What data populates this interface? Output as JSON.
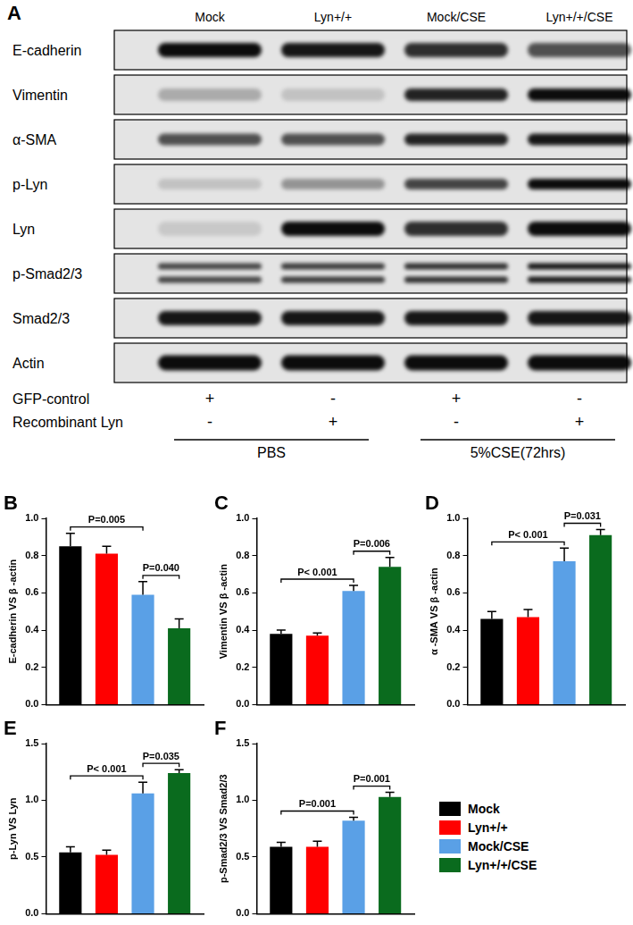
{
  "panel_a": {
    "label": "A",
    "columns": [
      "Mock",
      "Lyn+/+",
      "Mock/CSE",
      "Lyn+/+/CSE"
    ],
    "rows": [
      "E-cadherin",
      "Vimentin",
      "α-SMA",
      "p-Lyn",
      "Lyn",
      "p-Smad2/3",
      "Smad2/3",
      "Actin"
    ],
    "treatments": [
      {
        "name": "GFP-control",
        "marks": [
          "+",
          "-",
          "+",
          "-"
        ]
      },
      {
        "name": "Recombinant Lyn",
        "marks": [
          "-",
          "+",
          "-",
          "+"
        ]
      }
    ],
    "groups": [
      {
        "label": "PBS",
        "columns": [
          "Mock",
          "Lyn+/+"
        ]
      },
      {
        "label": "5%CSE(72hrs)",
        "columns": [
          "Mock/CSE",
          "Lyn+/+/CSE"
        ]
      }
    ]
  },
  "chart_data": [
    {
      "type": "bar",
      "title": "B",
      "y_label": "E-cadherin VS β -actin",
      "categories": [
        null
      ],
      "tick_labels": "y",
      "grid": false,
      "ylim": [
        0,
        1.0
      ],
      "yticks": [
        {
          "value": 0,
          "label": "0.0"
        },
        {
          "value": 0.2,
          "label": "0.2"
        },
        {
          "value": 0.4,
          "label": "0.4"
        },
        {
          "value": 0.6,
          "label": "0.6"
        },
        {
          "value": 0.8,
          "label": "0.8"
        },
        {
          "value": 1.0,
          "label": "1.0"
        }
      ],
      "series": [
        {
          "name": "Mock",
          "color": "#000000",
          "values": [
            0.85
          ],
          "errors": [
            0.07
          ]
        },
        {
          "name": "Lyn+/+",
          "color": "#ff0000",
          "values": [
            0.81
          ],
          "errors": [
            0.04
          ]
        },
        {
          "name": "Mock/CSE",
          "color": "#5aa0e6",
          "values": [
            0.59
          ],
          "errors": [
            0.07
          ]
        },
        {
          "name": "Lyn+/+/CSE",
          "color": "#0a6b1e",
          "values": [
            0.41
          ],
          "errors": [
            0.05
          ]
        }
      ],
      "annotations": [
        {
          "from": "Mock",
          "to": "Mock/CSE",
          "label": "P=0.005"
        },
        {
          "from": "Mock/CSE",
          "to": "Lyn+/+/CSE",
          "label": "P=0.040"
        }
      ]
    },
    {
      "type": "bar",
      "title": "C",
      "y_label": "Vimentin VS β -actin",
      "categories": [
        null
      ],
      "tick_labels": "y",
      "grid": false,
      "ylim": [
        0,
        1.0
      ],
      "yticks": [
        {
          "value": 0,
          "label": "0.0"
        },
        {
          "value": 0.2,
          "label": "0.2"
        },
        {
          "value": 0.4,
          "label": "0.4"
        },
        {
          "value": 0.6,
          "label": "0.6"
        },
        {
          "value": 0.8,
          "label": "0.8"
        },
        {
          "value": 1.0,
          "label": "1.0"
        }
      ],
      "series": [
        {
          "name": "Mock",
          "color": "#000000",
          "values": [
            0.38
          ],
          "errors": [
            0.02
          ]
        },
        {
          "name": "Lyn+/+",
          "color": "#ff0000",
          "values": [
            0.37
          ],
          "errors": [
            0.015
          ]
        },
        {
          "name": "Mock/CSE",
          "color": "#5aa0e6",
          "values": [
            0.61
          ],
          "errors": [
            0.03
          ]
        },
        {
          "name": "Lyn+/+/CSE",
          "color": "#0a6b1e",
          "values": [
            0.74
          ],
          "errors": [
            0.05
          ]
        }
      ],
      "annotations": [
        {
          "from": "Mock",
          "to": "Mock/CSE",
          "label": "P< 0.001"
        },
        {
          "from": "Mock/CSE",
          "to": "Lyn+/+/CSE",
          "label": "P=0.006"
        }
      ]
    },
    {
      "type": "bar",
      "title": "D",
      "y_label": "α -SMA VS β -actin",
      "categories": [
        null
      ],
      "tick_labels": "y",
      "grid": false,
      "ylim": [
        0,
        1.0
      ],
      "yticks": [
        {
          "value": 0,
          "label": "0.0"
        },
        {
          "value": 0.2,
          "label": "0.2"
        },
        {
          "value": 0.4,
          "label": "0.4"
        },
        {
          "value": 0.6,
          "label": "0.6"
        },
        {
          "value": 0.8,
          "label": "0.8"
        },
        {
          "value": 1.0,
          "label": "1.0"
        }
      ],
      "series": [
        {
          "name": "Mock",
          "color": "#000000",
          "values": [
            0.46
          ],
          "errors": [
            0.04
          ]
        },
        {
          "name": "Lyn+/+",
          "color": "#ff0000",
          "values": [
            0.47
          ],
          "errors": [
            0.04
          ]
        },
        {
          "name": "Mock/CSE",
          "color": "#5aa0e6",
          "values": [
            0.77
          ],
          "errors": [
            0.07
          ]
        },
        {
          "name": "Lyn+/+/CSE",
          "color": "#0a6b1e",
          "values": [
            0.91
          ],
          "errors": [
            0.03
          ]
        }
      ],
      "annotations": [
        {
          "from": "Mock",
          "to": "Mock/CSE",
          "label": "P< 0.001"
        },
        {
          "from": "Mock/CSE",
          "to": "Lyn+/+/CSE",
          "label": "P=0.031"
        }
      ]
    },
    {
      "type": "bar",
      "title": "E",
      "y_label": "p-Lyn VS Lyn",
      "categories": [
        null
      ],
      "tick_labels": "y",
      "grid": false,
      "ylim": [
        0,
        1.5
      ],
      "yticks": [
        {
          "value": 0,
          "label": "0.0"
        },
        {
          "value": 0.5,
          "label": "0.5"
        },
        {
          "value": 1.0,
          "label": "1.0"
        },
        {
          "value": 1.5,
          "label": "1.5"
        }
      ],
      "series": [
        {
          "name": "Mock",
          "color": "#000000",
          "values": [
            0.54
          ],
          "errors": [
            0.05
          ]
        },
        {
          "name": "Lyn+/+",
          "color": "#ff0000",
          "values": [
            0.52
          ],
          "errors": [
            0.04
          ]
        },
        {
          "name": "Mock/CSE",
          "color": "#5aa0e6",
          "values": [
            1.06
          ],
          "errors": [
            0.1
          ]
        },
        {
          "name": "Lyn+/+/CSE",
          "color": "#0a6b1e",
          "values": [
            1.24
          ],
          "errors": [
            0.03
          ]
        }
      ],
      "annotations": [
        {
          "from": "Mock",
          "to": "Mock/CSE",
          "label": "P< 0.001"
        },
        {
          "from": "Mock/CSE",
          "to": "Lyn+/+/CSE",
          "label": "P=0.035"
        }
      ]
    },
    {
      "type": "bar",
      "title": "F",
      "y_label": "p-Smad2/3 VS Smad2/3",
      "categories": [
        null
      ],
      "tick_labels": "y",
      "grid": false,
      "legend": "right",
      "ylim": [
        0,
        1.5
      ],
      "yticks": [
        {
          "value": 0,
          "label": "0.0"
        },
        {
          "value": 0.5,
          "label": "0.5"
        },
        {
          "value": 1.0,
          "label": "1.0"
        },
        {
          "value": 1.5,
          "label": "1.5"
        }
      ],
      "series": [
        {
          "name": "Mock",
          "color": "#000000",
          "values": [
            0.59
          ],
          "errors": [
            0.04
          ]
        },
        {
          "name": "Lyn+/+",
          "color": "#ff0000",
          "values": [
            0.59
          ],
          "errors": [
            0.05
          ]
        },
        {
          "name": "Mock/CSE",
          "color": "#5aa0e6",
          "values": [
            0.82
          ],
          "errors": [
            0.03
          ]
        },
        {
          "name": "Lyn+/+/CSE",
          "color": "#0a6b1e",
          "values": [
            1.03
          ],
          "errors": [
            0.04
          ]
        }
      ],
      "annotations": [
        {
          "from": "Mock",
          "to": "Mock/CSE",
          "label": "P=0.001"
        },
        {
          "from": "Mock/CSE",
          "to": "Lyn+/+/CSE",
          "label": "P=0.001"
        }
      ]
    }
  ]
}
